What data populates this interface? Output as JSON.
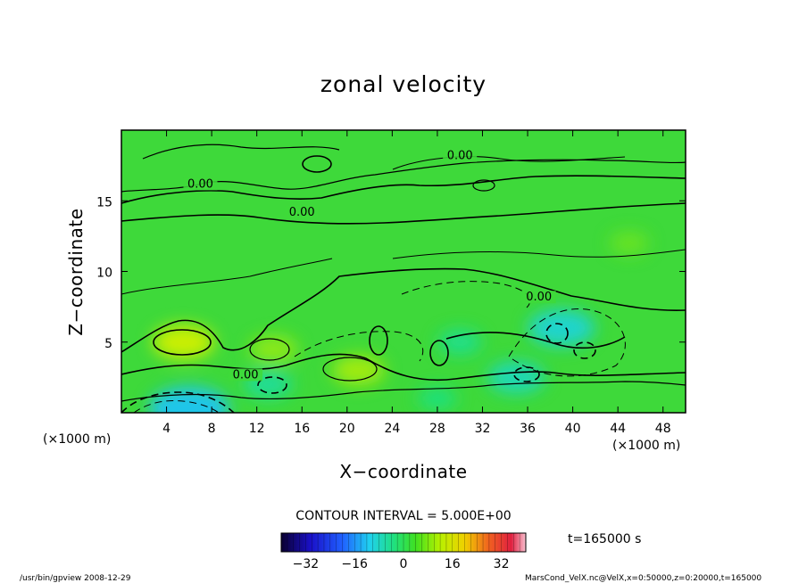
{
  "chart_data": {
    "type": "heatmap",
    "title": "zonal velocity",
    "xlabel": "X−coordinate",
    "ylabel": "Z−coordinate",
    "x_unit": "(×1000 m)",
    "y_unit": "(×1000 m)",
    "xlim": [
      0,
      50
    ],
    "ylim": [
      0,
      20
    ],
    "x_ticks": [
      "4",
      "8",
      "12",
      "16",
      "20",
      "24",
      "28",
      "32",
      "36",
      "40",
      "44",
      "48"
    ],
    "y_ticks": [
      "5",
      "10",
      "15"
    ],
    "contour_interval_text": "CONTOUR INTERVAL = 5.000E+00",
    "contour_labels": [
      {
        "text": "0.00",
        "x": 30,
        "z": 18
      },
      {
        "text": "0.00",
        "x": 7,
        "z": 16
      },
      {
        "text": "0.00",
        "x": 16,
        "z": 14
      },
      {
        "text": "0.00",
        "x": 37,
        "z": 8
      },
      {
        "text": "0.00",
        "x": 11,
        "z": 2.5
      }
    ],
    "colorbar": {
      "min": -40,
      "max": 40,
      "ticks": [
        "−32",
        "−16",
        "0",
        "16",
        "32"
      ],
      "tick_values": [
        -32,
        -16,
        0,
        16,
        32
      ]
    },
    "time_label": "t=165000 s",
    "footer_left": "/usr/bin/gpview   2008-12-29",
    "footer_right": "MarsCond_VelX.nc@VelX,x=0:50000,z=0:20000,t=165000",
    "features": [
      {
        "x": 5.5,
        "z": 5,
        "value": 8
      },
      {
        "x": 13.5,
        "z": 4.5,
        "value": 5
      },
      {
        "x": 21,
        "z": 3,
        "value": 6
      },
      {
        "x": 6,
        "z": 0.3,
        "value": -12
      },
      {
        "x": 39,
        "z": 6,
        "value": -9
      },
      {
        "x": 35,
        "z": 2.5,
        "value": -7
      },
      {
        "x": 13,
        "z": 2,
        "value": -5
      },
      {
        "x": 30,
        "z": 5,
        "value": -4
      },
      {
        "x": 28,
        "z": 1,
        "value": -3
      },
      {
        "x": 45,
        "z": 12,
        "value": 3
      }
    ]
  }
}
